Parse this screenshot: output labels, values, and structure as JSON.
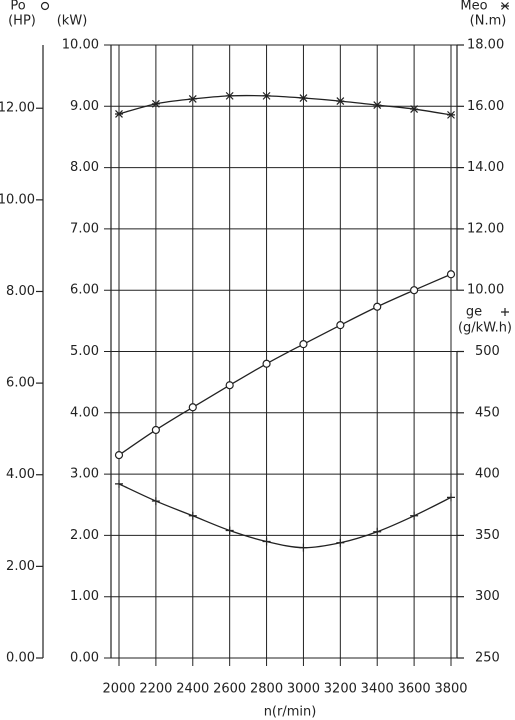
{
  "chart_data": {
    "type": "line",
    "x_label": "n(r/min)",
    "x": [
      2000,
      2200,
      2400,
      2600,
      2800,
      3000,
      3200,
      3400,
      3600,
      3800
    ],
    "xlim": [
      2000,
      3800
    ],
    "xticks": [
      2000,
      2200,
      2400,
      2600,
      2800,
      3000,
      3200,
      3400,
      3600,
      3800
    ],
    "grid": true,
    "hp_label": "(HP)",
    "hp_lim": [
      0,
      13.38
    ],
    "hp_ticks": [
      {
        "value": 0,
        "label": "0.00"
      },
      {
        "value": 2,
        "label": "2.00"
      },
      {
        "value": 4,
        "label": "4.00"
      },
      {
        "value": 6,
        "label": "6.00"
      },
      {
        "value": 8,
        "label": "8.00"
      },
      {
        "value": 10,
        "label": "10.00"
      },
      {
        "value": 12,
        "label": "12.00"
      }
    ],
    "y_label": "(kW)",
    "ylim": [
      0,
      10
    ],
    "yticks": [
      {
        "value": 0,
        "label": "0.00"
      },
      {
        "value": 1,
        "label": "1.00"
      },
      {
        "value": 2,
        "label": "2.00"
      },
      {
        "value": 3,
        "label": "3.00"
      },
      {
        "value": 4,
        "label": "4.00"
      },
      {
        "value": 5,
        "label": "5.00"
      },
      {
        "value": 6,
        "label": "6.00"
      },
      {
        "value": 7,
        "label": "7.00"
      },
      {
        "value": 8,
        "label": "8.00"
      },
      {
        "value": 9,
        "label": "9.00"
      },
      {
        "value": 10,
        "label": "10.00"
      }
    ],
    "y2_label": "(N.m)",
    "y2lim": [
      -2,
      18
    ],
    "y2ticks": [
      {
        "value": 10,
        "label": "10.00"
      },
      {
        "value": 12,
        "label": "12.00"
      },
      {
        "value": 14,
        "label": "14.00"
      },
      {
        "value": 16,
        "label": "16.00"
      },
      {
        "value": 18,
        "label": "18.00"
      }
    ],
    "y3_label": "(g/kW.h)",
    "y3lim": [
      250,
      750
    ],
    "y3ticks": [
      250,
      300,
      350,
      400,
      450,
      500
    ],
    "series": [
      {
        "name": "Po",
        "marker": "circle",
        "color": "#222",
        "axis": "y",
        "values": [
          3.31,
          3.72,
          4.09,
          4.45,
          4.8,
          5.12,
          5.43,
          5.73,
          6.0,
          6.26
        ]
      },
      {
        "name": "Meo",
        "marker": "asterisk",
        "color": "#222",
        "axis": "y2",
        "values": [
          15.75,
          16.08,
          16.24,
          16.34,
          16.34,
          16.27,
          16.17,
          16.04,
          15.91,
          15.72
        ]
      },
      {
        "name": "ge",
        "marker": "plus",
        "color": "#222",
        "axis": "y3",
        "values": [
          392,
          378,
          366,
          354,
          345,
          340,
          344,
          353,
          366,
          381
        ]
      }
    ]
  }
}
